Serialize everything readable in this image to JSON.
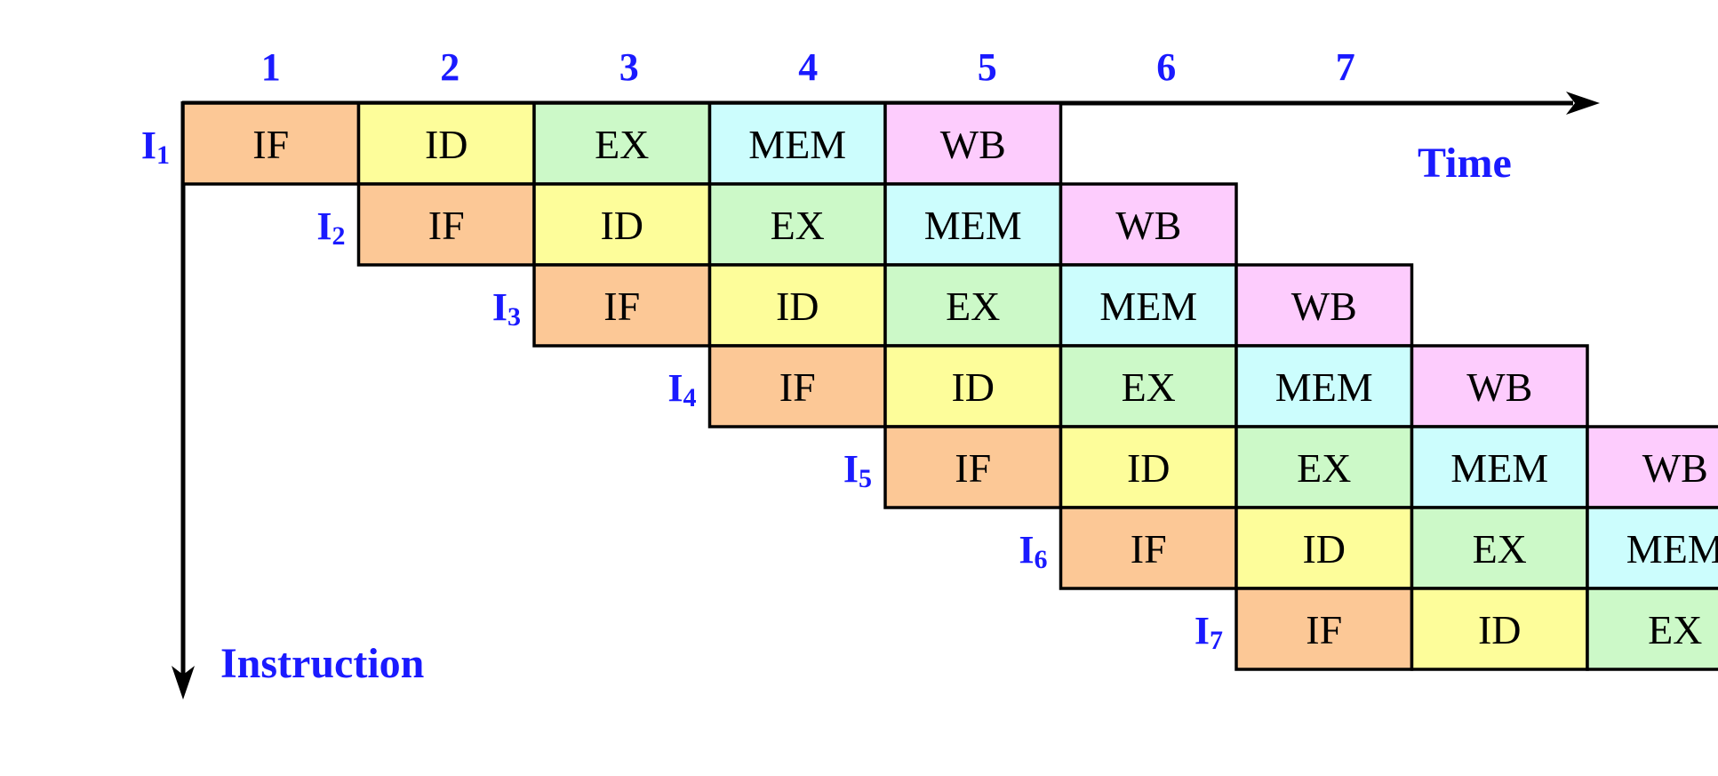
{
  "cycles": [
    "1",
    "2",
    "3",
    "4",
    "5",
    "6",
    "7"
  ],
  "axes": {
    "time_label": "Time",
    "instruction_label": "Instruction"
  },
  "stages": [
    {
      "name": "IF",
      "color": "#FCC896"
    },
    {
      "name": "ID",
      "color": "#FDFD9A"
    },
    {
      "name": "EX",
      "color": "#CCF9C8"
    },
    {
      "name": "MEM",
      "color": "#CCFDFD"
    },
    {
      "name": "WB",
      "color": "#FDCCFD"
    }
  ],
  "instructions": [
    {
      "letter": "I",
      "index": "1"
    },
    {
      "letter": "I",
      "index": "2"
    },
    {
      "letter": "I",
      "index": "3"
    },
    {
      "letter": "I",
      "index": "4"
    },
    {
      "letter": "I",
      "index": "5"
    },
    {
      "letter": "I",
      "index": "6"
    },
    {
      "letter": "I",
      "index": "7"
    }
  ]
}
